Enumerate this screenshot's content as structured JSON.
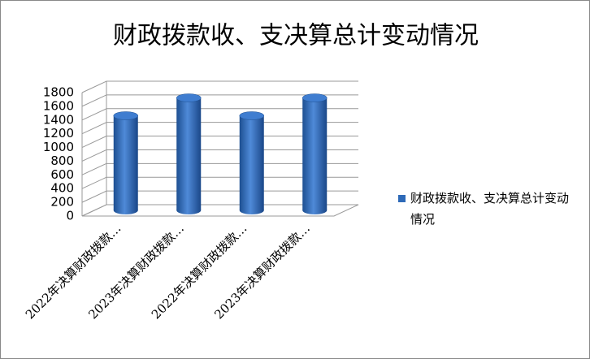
{
  "chart_data": {
    "type": "bar3d",
    "title": "财政拨款收、支决算总计变动情况",
    "categories": [
      "2022年决算财政拨款…",
      "2023年决算财政拨款…",
      "2022年决算财政拨款…",
      "2023年决算财政拨款…"
    ],
    "series": [
      {
        "name": "财政拨款收、支决算总计变动情况",
        "color": "#2e6ab8",
        "values": [
          1380,
          1640,
          1380,
          1640
        ]
      }
    ],
    "ylim": [
      0,
      1800
    ],
    "yticks": [
      0,
      200,
      400,
      600,
      800,
      1000,
      1200,
      1400,
      1600,
      1800
    ],
    "grid": true,
    "legend": "right"
  }
}
